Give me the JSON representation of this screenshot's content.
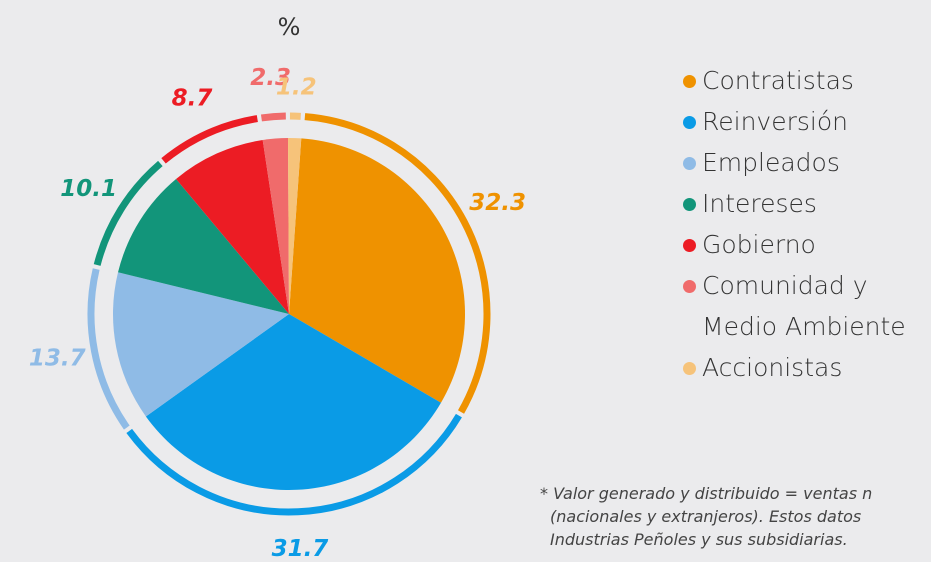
{
  "chart_data": {
    "type": "pie",
    "title": "%",
    "categories": [
      "Contratistas",
      "Reinversión",
      "Empleados",
      "Intereses",
      "Gobierno",
      "Comunidad y Medio Ambiente",
      "Accionistas"
    ],
    "values": [
      32.3,
      31.7,
      13.7,
      10.1,
      8.7,
      2.3,
      1.2
    ],
    "colors": [
      "#ef9200",
      "#0a9be6",
      "#8fbbe6",
      "#12957a",
      "#ec1c24",
      "#f06b6b",
      "#f6c37a"
    ],
    "legend": "right",
    "note": [
      "* Valor generado y distribuido = ventas n",
      "(nacionales y extranjeros). Estos datos",
      "Industrias Peñoles y sus subsidiarias."
    ]
  }
}
